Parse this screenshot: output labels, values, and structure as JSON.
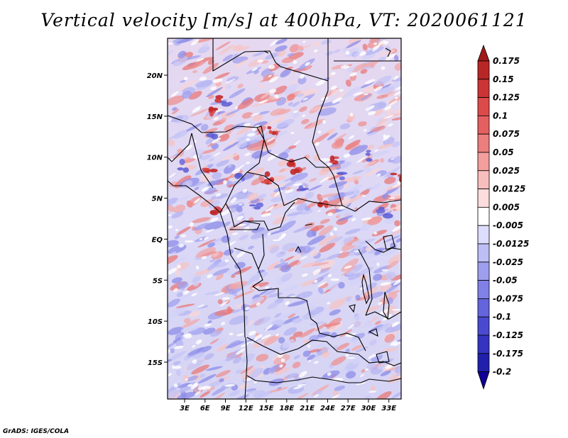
{
  "title": "Vertical velocity [m/s] at 400hPa, VT: 2020061121",
  "credit": "GrADS: IGES/COLA",
  "map": {
    "lat_labels": [
      "20N",
      "15N",
      "10N",
      "5N",
      "EQ",
      "5S",
      "10S",
      "15S"
    ],
    "lat_values": [
      20,
      15,
      10,
      5,
      0,
      -5,
      -10,
      -15
    ],
    "lon_labels": [
      "3E",
      "6E",
      "9E",
      "12E",
      "15E",
      "18E",
      "21E",
      "24E",
      "27E",
      "30E",
      "33E"
    ],
    "lon_values": [
      3,
      6,
      9,
      12,
      15,
      18,
      21,
      24,
      27,
      30,
      33
    ],
    "lon_range": [
      0.5,
      34.8
    ],
    "lat_range": [
      -19.5,
      24.5
    ]
  },
  "colorbar": {
    "labels": [
      "0.175",
      "0.15",
      "0.125",
      "0.1",
      "0.075",
      "0.05",
      "0.025",
      "0.0125",
      "0.005",
      "-0.005",
      "-0.0125",
      "-0.025",
      "-0.05",
      "-0.075",
      "-0.1",
      "-0.125",
      "-0.175",
      "-0.2"
    ],
    "colors": [
      "#a01a1a",
      "#b82626",
      "#cc3535",
      "#dc4a4a",
      "#e46060",
      "#ec7e7e",
      "#f49e9e",
      "#f8bebe",
      "#fcdcdc",
      "#ffffff",
      "#dcdcfc",
      "#bebef6",
      "#9e9eee",
      "#8080e6",
      "#6464dc",
      "#4a4ad0",
      "#3434c0",
      "#2020ac",
      "#100096"
    ]
  },
  "chart_data": {
    "type": "heatmap",
    "title": "Vertical velocity [m/s] at 400hPa, VT: 2020061121",
    "variable": "Vertical velocity",
    "units": "m/s",
    "level": "400hPa",
    "valid_time": "2020061121",
    "x_ticks": [
      "3E",
      "6E",
      "9E",
      "12E",
      "15E",
      "18E",
      "21E",
      "24E",
      "27E",
      "30E",
      "33E"
    ],
    "y_ticks": [
      "20N",
      "15N",
      "10N",
      "5N",
      "EQ",
      "5S",
      "10S",
      "15S"
    ],
    "contour_levels": [
      -0.2,
      -0.175,
      -0.125,
      -0.1,
      -0.075,
      -0.05,
      -0.025,
      -0.0125,
      -0.005,
      0.005,
      0.0125,
      0.025,
      0.05,
      0.075,
      0.1,
      0.125,
      0.15,
      0.175
    ]
  }
}
